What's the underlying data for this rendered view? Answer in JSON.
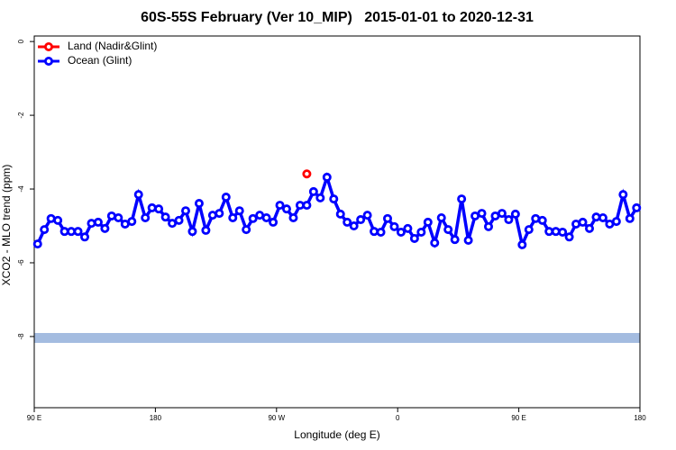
{
  "chart_data": {
    "type": "line",
    "title": "60S-55S February (Ver 10_MIP)   2015-01-01 to 2020-12-31",
    "x_label": "Longitude (deg E)",
    "y_label": "XCO2 - MLO trend (ppm)",
    "xlim": [
      90,
      540
    ],
    "xticks": [
      {
        "value": 90,
        "label": "90 E"
      },
      180,
      {
        "value": 270,
        "label": "90 W"
      },
      {
        "value": 360,
        "label": "0"
      },
      {
        "value": 450,
        "label": "90 E"
      },
      {
        "value": 540,
        "label": "180"
      }
    ],
    "ylim": [
      -9.93,
      0.15
    ],
    "yticks": [
      0,
      -2,
      -4,
      -6,
      -8
    ],
    "legend": "top-left",
    "x": [
      92.5,
      97.5,
      102.5,
      107.5,
      112.5,
      117.5,
      122.5,
      127.5,
      132.5,
      137.5,
      142.5,
      147.5,
      152.5,
      157.5,
      162.5,
      167.5,
      172.5,
      177.5,
      182.5,
      187.5,
      192.5,
      197.5,
      202.5,
      207.5,
      212.5,
      217.5,
      222.5,
      227.5,
      232.5,
      237.5,
      242.5,
      247.5,
      252.5,
      257.5,
      262.5,
      267.5,
      272.5,
      277.5,
      282.5,
      287.5,
      292.5,
      297.5,
      302.5,
      307.5,
      312.5,
      317.5,
      322.5,
      327.5,
      332.5,
      337.5,
      342.5,
      347.5,
      352.5,
      357.5,
      362.5,
      367.5,
      372.5,
      377.5,
      382.5,
      387.5,
      392.5,
      397.5,
      402.5,
      407.5,
      412.5,
      417.5,
      422.5,
      427.5,
      432.5,
      437.5,
      442.5,
      447.5,
      452.5,
      457.5,
      462.5,
      467.5,
      472.5,
      477.5,
      482.5,
      487.5,
      492.5,
      497.5,
      502.5,
      507.5,
      512.5,
      517.5,
      522.5,
      527.5,
      532.5,
      537.5
    ],
    "series": [
      {
        "name": "Land (Nadir&Glint)",
        "color": "#ff0000",
        "line": false,
        "values": [
          null,
          null,
          null,
          null,
          null,
          null,
          null,
          null,
          null,
          null,
          null,
          null,
          null,
          null,
          null,
          null,
          null,
          null,
          null,
          null,
          null,
          null,
          null,
          null,
          null,
          null,
          null,
          null,
          null,
          null,
          null,
          null,
          null,
          null,
          null,
          null,
          null,
          null,
          null,
          null,
          -3.59,
          null,
          null,
          null,
          null,
          null,
          null,
          null,
          null,
          null,
          null,
          null,
          null,
          null,
          null,
          null,
          null,
          null,
          null,
          null,
          null,
          null,
          null,
          null,
          null,
          null,
          null,
          null,
          null,
          null,
          null,
          null,
          null,
          null,
          null,
          null,
          null,
          null,
          null,
          null,
          null,
          null,
          null,
          null,
          null,
          null,
          null,
          null,
          null,
          null
        ]
      },
      {
        "name": "Ocean (Glint)",
        "color": "#0000ff",
        "line": true,
        "values": [
          -5.49,
          -5.1,
          -4.8,
          -4.85,
          -5.15,
          -5.15,
          -5.15,
          -5.3,
          -4.93,
          -4.9,
          -5.07,
          -4.73,
          -4.78,
          -4.95,
          -4.88,
          -4.15,
          -4.78,
          -4.51,
          -4.54,
          -4.76,
          -4.93,
          -4.85,
          -4.59,
          -5.15,
          -4.39,
          -5.12,
          -4.71,
          -4.66,
          -4.22,
          -4.78,
          -4.59,
          -5.1,
          -4.8,
          -4.71,
          -4.78,
          -4.9,
          -4.44,
          -4.54,
          -4.78,
          -4.44,
          -4.44,
          -4.07,
          -4.24,
          -3.68,
          -4.27,
          -4.68,
          -4.9,
          -5.0,
          -4.83,
          -4.71,
          -5.15,
          -5.17,
          -4.8,
          -5.02,
          -5.17,
          -5.07,
          -5.34,
          -5.17,
          -4.9,
          -5.46,
          -4.78,
          -5.1,
          -5.37,
          -4.27,
          -5.39,
          -4.73,
          -4.66,
          -5.02,
          -4.73,
          -4.66,
          -4.83,
          -4.68,
          -5.51,
          -5.1,
          -4.8,
          -4.85,
          -5.15,
          -5.15,
          -5.17,
          -5.3,
          -4.95,
          -4.9,
          -5.07,
          -4.76,
          -4.78,
          -4.95,
          -4.88,
          -4.15,
          -4.8,
          -4.51
        ]
      }
    ]
  }
}
